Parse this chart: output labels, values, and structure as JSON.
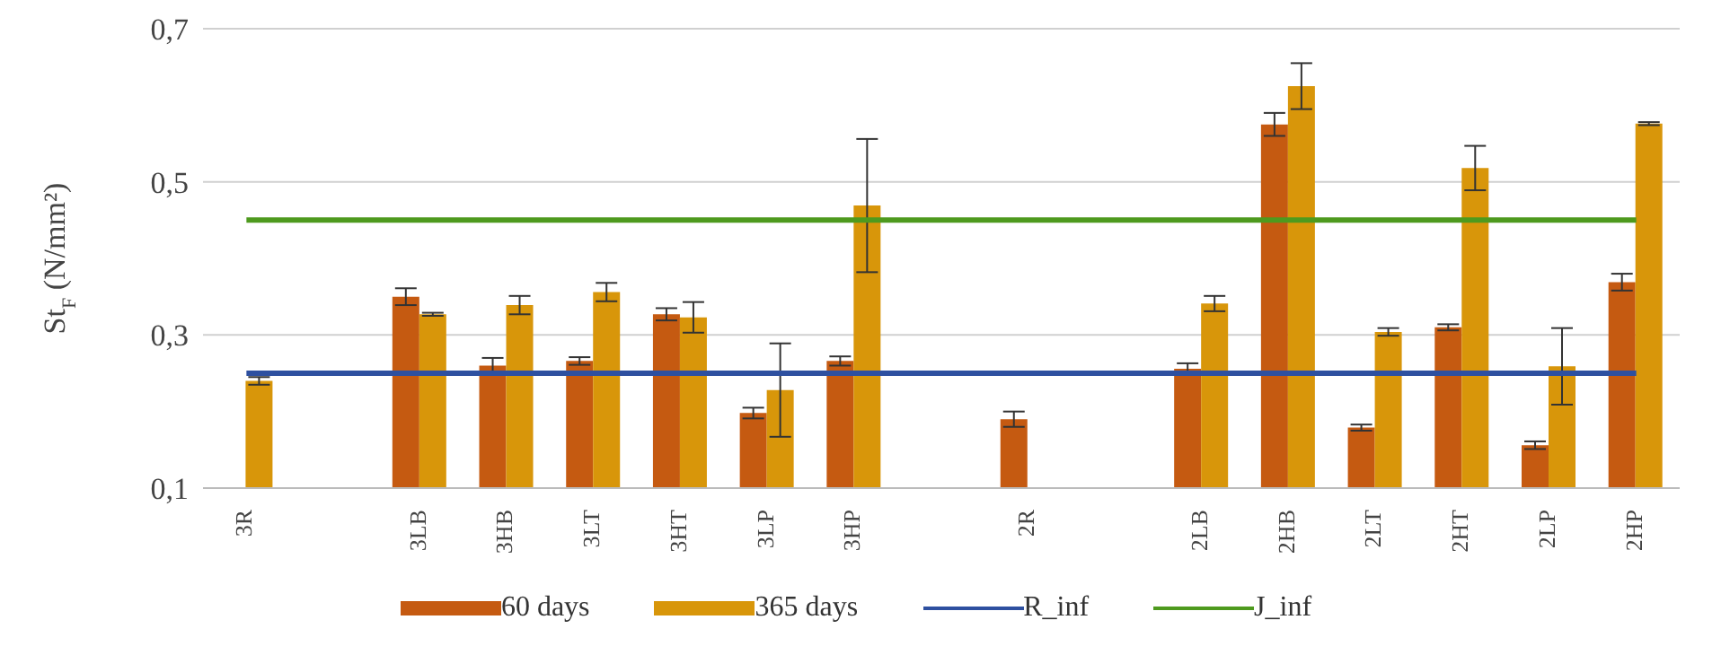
{
  "chart_data": {
    "type": "bar",
    "ylabel": "St$_{F}$ (N/mm²)",
    "categories": [
      "3R",
      null,
      "3LB",
      "3HB",
      "3LT",
      "3HT",
      "3LP",
      "3HP",
      null,
      "2R",
      null,
      "2LB",
      "2HB",
      "2LT",
      "2HT",
      "2LP",
      "2HP"
    ],
    "series": [
      {
        "name": "60 days",
        "color": "#c55a11",
        "values": [
          0.1,
          null,
          0.35,
          0.26,
          0.266,
          0.327,
          0.198,
          0.266,
          null,
          0.19,
          null,
          0.256,
          0.575,
          0.179,
          0.31,
          0.156,
          0.369
        ],
        "errors": [
          null,
          null,
          0.011,
          0.01,
          0.005,
          0.008,
          0.007,
          0.006,
          null,
          0.01,
          null,
          0.007,
          0.015,
          0.004,
          0.004,
          0.005,
          0.011
        ]
      },
      {
        "name": "365 days",
        "color": "#d8960a",
        "values": [
          0.24,
          null,
          0.327,
          0.339,
          0.356,
          0.323,
          0.228,
          0.469,
          null,
          0.1,
          null,
          0.341,
          0.625,
          0.304,
          0.518,
          0.259,
          0.576
        ],
        "errors": [
          0.005,
          null,
          0.002,
          0.012,
          0.012,
          0.02,
          0.061,
          0.087,
          null,
          null,
          null,
          0.01,
          0.03,
          0.005,
          0.029,
          0.05,
          0.002
        ]
      },
      {
        "name": "R_inf",
        "type": "line",
        "color": "#2e50a0",
        "values": [
          0.25,
          0.25,
          0.25,
          0.25,
          0.25,
          0.25,
          0.25,
          0.25,
          0.25,
          0.25,
          0.25,
          0.25,
          0.25,
          0.25,
          0.25,
          0.25,
          0.25
        ]
      },
      {
        "name": "J_inf",
        "type": "line",
        "color": "#4e9a1e",
        "values": [
          0.45,
          0.45,
          0.45,
          0.45,
          0.45,
          0.45,
          0.45,
          0.45,
          0.45,
          0.45,
          0.45,
          0.45,
          0.45,
          0.45,
          0.45,
          0.45,
          0.45
        ]
      }
    ],
    "ylim": [
      0.1,
      0.7
    ],
    "yticks": [
      {
        "value": 0.1,
        "label": "0,1"
      },
      {
        "value": 0.3,
        "label": "0,3"
      },
      {
        "value": 0.5,
        "label": "0,5"
      },
      {
        "value": 0.7,
        "label": "0,7"
      }
    ],
    "grid": "y",
    "legend": "bottom",
    "marker": "none",
    "line_style": "solid"
  }
}
